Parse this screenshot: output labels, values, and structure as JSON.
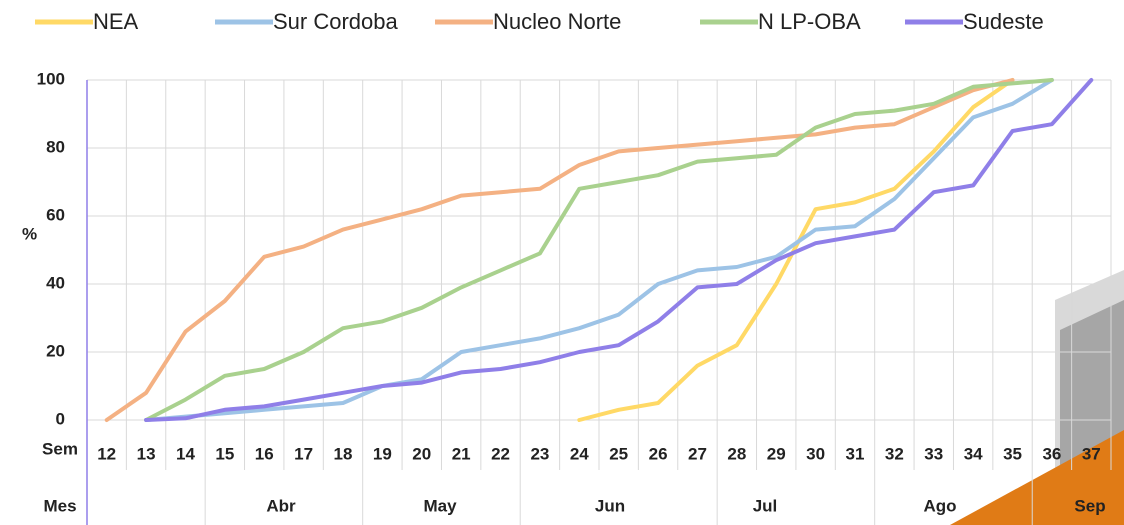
{
  "chart_data": {
    "type": "line",
    "y_label": "%",
    "x_row_label": "Sem",
    "month_row_label": "Mes",
    "categories": [
      "12",
      "13",
      "14",
      "15",
      "16",
      "17",
      "18",
      "19",
      "20",
      "21",
      "22",
      "23",
      "24",
      "25",
      "26",
      "27",
      "28",
      "29",
      "30",
      "31",
      "32",
      "33",
      "34",
      "35",
      "36",
      "37"
    ],
    "months": [
      "Abr",
      "May",
      "Jun",
      "Jul",
      "Ago",
      "Sep"
    ],
    "ylim": [
      0,
      100
    ],
    "yticks": [
      0,
      20,
      40,
      60,
      80,
      100
    ],
    "grid": true,
    "series": [
      {
        "name": "NEA",
        "color": "#ffd966",
        "values": [
          null,
          null,
          null,
          null,
          null,
          null,
          null,
          null,
          null,
          null,
          null,
          null,
          0,
          3,
          5,
          16,
          22,
          40,
          62,
          64,
          68,
          79,
          92,
          100,
          null,
          null
        ]
      },
      {
        "name": "Sur Cordoba",
        "color": "#9dc3e6",
        "values": [
          null,
          0,
          1,
          2,
          3,
          4,
          5,
          10,
          12,
          20,
          22,
          24,
          27,
          31,
          40,
          44,
          45,
          48,
          56,
          57,
          65,
          77,
          89,
          93,
          100,
          null
        ]
      },
      {
        "name": "Nucleo Norte",
        "color": "#f4b183",
        "values": [
          0,
          8,
          26,
          35,
          48,
          51,
          56,
          59,
          62,
          66,
          67,
          68,
          75,
          79,
          80,
          81,
          82,
          83,
          84,
          86,
          87,
          92,
          97,
          100,
          null,
          null
        ]
      },
      {
        "name": "N LP-OBA",
        "color": "#a9d18e",
        "values": [
          null,
          0,
          6,
          13,
          15,
          20,
          27,
          29,
          33,
          39,
          44,
          49,
          68,
          70,
          72,
          76,
          77,
          78,
          86,
          90,
          91,
          93,
          98,
          99,
          100,
          null
        ]
      },
      {
        "name": "Sudeste",
        "color": "#8f7fe8",
        "values": [
          null,
          0,
          0.5,
          3,
          4,
          6,
          8,
          10,
          11,
          14,
          15,
          17,
          20,
          22,
          29,
          39,
          40,
          47,
          52,
          54,
          56,
          67,
          69,
          85,
          87,
          100
        ]
      }
    ]
  }
}
